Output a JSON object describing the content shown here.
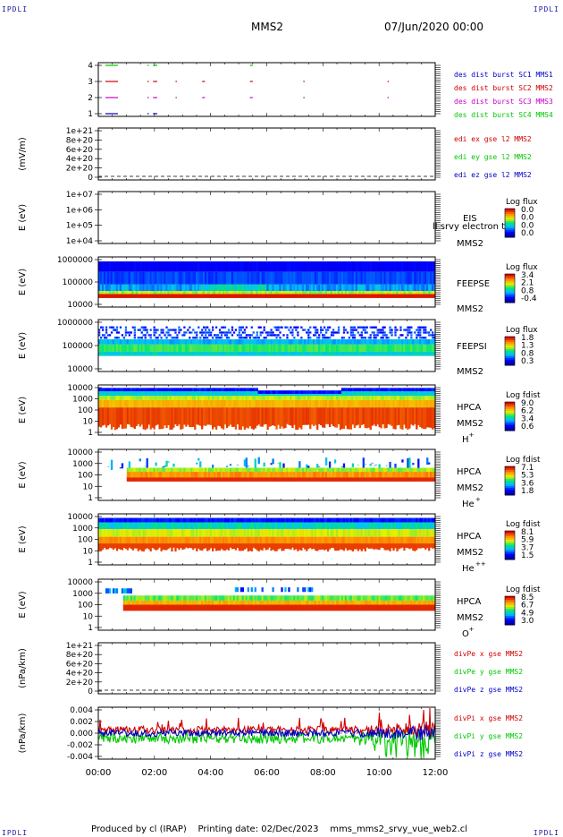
{
  "header": {
    "corner_label": "IPDLI",
    "spacecraft": "MMS2",
    "date": "07/Jun/2020 00:00"
  },
  "footer": {
    "produced_by": "Produced by cl (IRAP)",
    "printing_date": "Printing date: 02/Dec/2023",
    "script_name": "mms_mms2_srvy_vue_web2.cl"
  },
  "time_axis": {
    "range_hours": [
      0,
      12
    ],
    "tick_labels": [
      "00:00",
      "02:00",
      "04:00",
      "06:00",
      "08:00",
      "10:00",
      "12:00"
    ]
  },
  "colors": {
    "blue": "#0000c8",
    "green": "#00c800",
    "red": "#d00000",
    "magenta": "#c800c8"
  },
  "chart_data": [
    {
      "id": "burst",
      "type": "line",
      "ylabel": "",
      "yticks": [
        "4",
        "3",
        "2",
        "1"
      ],
      "ylim": [
        0.5,
        4.5
      ],
      "series": [
        {
          "name": "des dist burst SC1 MMS1",
          "level": 1,
          "color": "#0000c8",
          "segments": [
            [
              0.25,
              0.7
            ],
            [
              1.75,
              1.8
            ],
            [
              1.95,
              2.1
            ]
          ]
        },
        {
          "name": "des dist burst SC2 MMS2",
          "level": 3,
          "color": "#d00000",
          "segments": [
            [
              0.25,
              0.7
            ],
            [
              1.75,
              1.8
            ],
            [
              1.95,
              2.1
            ],
            [
              2.75,
              2.8
            ],
            [
              3.7,
              3.8
            ],
            [
              5.4,
              5.5
            ],
            [
              7.3,
              7.35
            ],
            [
              10.3,
              10.35
            ]
          ]
        },
        {
          "name": "des dist burst SC3 MMS3",
          "level": 2,
          "color": "#c800c8",
          "segments": [
            [
              0.25,
              0.7
            ],
            [
              1.75,
              1.8
            ],
            [
              1.95,
              2.1
            ],
            [
              2.75,
              2.8
            ],
            [
              3.7,
              3.8
            ],
            [
              5.4,
              5.5
            ],
            [
              7.3,
              7.35
            ],
            [
              10.3,
              10.35
            ]
          ]
        },
        {
          "name": "des dist burst SC4 MMS4",
          "level": 4,
          "color": "#00c800",
          "segments": [
            [
              0.25,
              0.7
            ],
            [
              1.75,
              1.8
            ],
            [
              1.95,
              2.1
            ],
            [
              5.4,
              5.5
            ]
          ]
        }
      ]
    },
    {
      "id": "edi",
      "type": "line",
      "ylabel": "(mV/m)",
      "yticks": [
        "1e+21",
        "8e+20",
        "6e+20",
        "4e+20",
        "2e+20",
        "0"
      ],
      "ylim": [
        0,
        1e+21
      ],
      "series": [
        {
          "name": "edi ex gse l2 MMS2",
          "color": "#d00000"
        },
        {
          "name": "edi ey gse l2 MMS2",
          "color": "#00c800"
        },
        {
          "name": "edi ez gse l2 MMS2",
          "color": "#0000c8"
        }
      ]
    },
    {
      "id": "eis",
      "type": "heatmap",
      "ylabel": "E (eV)",
      "yticks": [
        "1e+07",
        "1e+06",
        "1e+05",
        "1e+04"
      ],
      "labels": [
        "EIS",
        "MMS2"
      ],
      "overlay_text": "ll srvy electron to",
      "colorbar": {
        "title": "Log flux",
        "ticks": [
          "0.0",
          "0.0",
          "0.0",
          "0.0"
        ]
      }
    },
    {
      "id": "feepse",
      "type": "heatmap",
      "ylabel": "E (eV)",
      "yticks": [
        "1000000",
        "100000",
        "10000"
      ],
      "labels": [
        "FEEPSE",
        "MMS2"
      ],
      "colorbar": {
        "title": "Log flux",
        "ticks": [
          "3.4",
          "2.1",
          "0.8",
          "-0.4"
        ]
      }
    },
    {
      "id": "feepsi",
      "type": "heatmap",
      "ylabel": "E (eV)",
      "yticks": [
        "1000000",
        "100000",
        "10000"
      ],
      "labels": [
        "FEEPSI",
        "MMS2"
      ],
      "colorbar": {
        "title": "Log flux",
        "ticks": [
          "1.8",
          "1.3",
          "0.8",
          "0.3"
        ]
      }
    },
    {
      "id": "hpca_h",
      "type": "heatmap",
      "ylabel": "E (eV)",
      "yticks": [
        "10000",
        "1000",
        "100",
        "10",
        "1"
      ],
      "labels": [
        "HPCA",
        "MMS2"
      ],
      "species": "H",
      "species_charge": "+",
      "colorbar": {
        "title": "Log fdist",
        "ticks": [
          "9.0",
          "6.2",
          "3.4",
          "0.6"
        ]
      }
    },
    {
      "id": "hpca_he1",
      "type": "heatmap",
      "ylabel": "E (eV)",
      "yticks": [
        "10000",
        "1000",
        "100",
        "10",
        "1"
      ],
      "labels": [
        "HPCA",
        "MMS2"
      ],
      "species": "He",
      "species_charge": "+",
      "colorbar": {
        "title": "Log fdist",
        "ticks": [
          "7.1",
          "5.3",
          "3.6",
          "1.8"
        ]
      }
    },
    {
      "id": "hpca_he2",
      "type": "heatmap",
      "ylabel": "E (eV)",
      "yticks": [
        "10000",
        "1000",
        "100",
        "10",
        "1"
      ],
      "labels": [
        "HPCA",
        "MMS2"
      ],
      "species": "He",
      "species_charge": "++",
      "colorbar": {
        "title": "Log fdist",
        "ticks": [
          "8.1",
          "5.9",
          "3.7",
          "1.5"
        ]
      }
    },
    {
      "id": "hpca_o",
      "type": "heatmap",
      "ylabel": "E (eV)",
      "yticks": [
        "10000",
        "1000",
        "100",
        "10",
        "1"
      ],
      "labels": [
        "HPCA",
        "MMS2"
      ],
      "species": "O",
      "species_charge": "+",
      "colorbar": {
        "title": "Log fdist",
        "ticks": [
          "8.5",
          "6.7",
          "4.9",
          "3.0"
        ]
      }
    },
    {
      "id": "divpe",
      "type": "line",
      "ylabel": "(nPa/km)",
      "yticks": [
        "1e+21",
        "8e+20",
        "6e+20",
        "4e+20",
        "2e+20",
        "0"
      ],
      "ylim": [
        0,
        1e+21
      ],
      "series": [
        {
          "name": "divPe x gse MMS2",
          "color": "#d00000"
        },
        {
          "name": "divPe y gse MMS2",
          "color": "#00c800"
        },
        {
          "name": "divPe z gse MMS2",
          "color": "#0000c8"
        }
      ]
    },
    {
      "id": "divpi",
      "type": "line",
      "ylabel": "(nPa/km)",
      "yticks": [
        "0.004",
        "0.002",
        "0.000",
        "-0.002",
        "-0.004"
      ],
      "ylim": [
        -0.006,
        0.006
      ],
      "series": [
        {
          "name": "divPi x gse MMS2",
          "color": "#d00000"
        },
        {
          "name": "divPi y gse MMS2",
          "color": "#00c800"
        },
        {
          "name": "divPi z gse MMS2",
          "color": "#0000c8"
        }
      ]
    }
  ]
}
